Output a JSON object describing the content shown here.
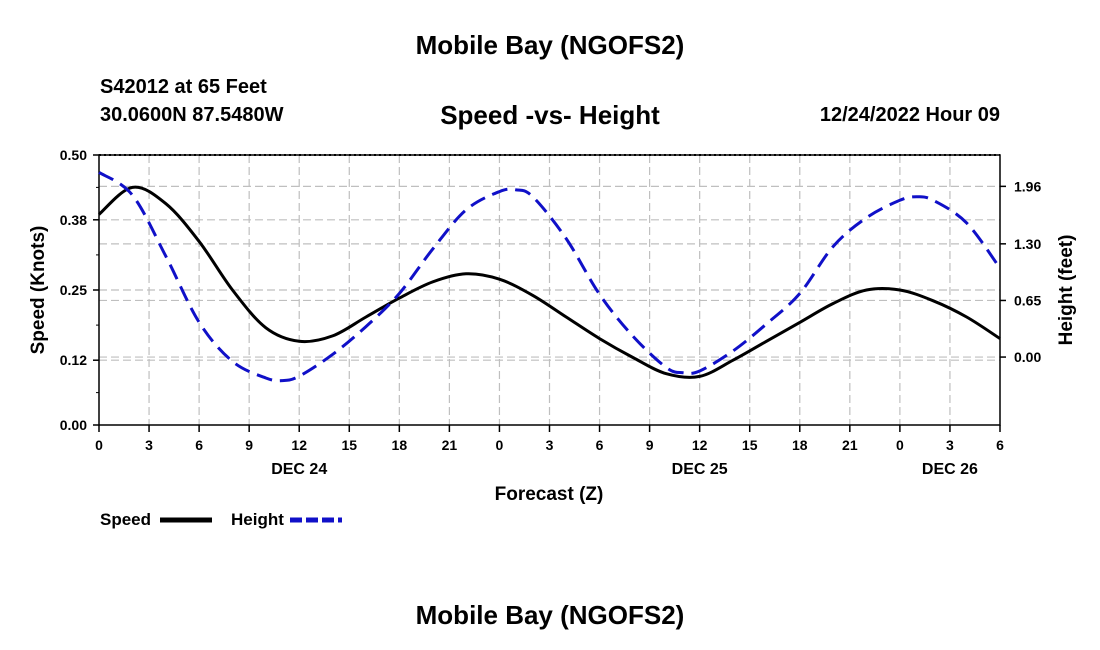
{
  "header": {
    "title": "Mobile Bay (NGOFS2)",
    "station": "S42012 at 65 Feet",
    "coords": "30.0600N  87.5480W",
    "chart_title": "Speed -vs- Height",
    "timestamp": "12/24/2022 Hour 09"
  },
  "footer": {
    "title": "Mobile Bay (NGOFS2)"
  },
  "colors": {
    "speed": "#000000",
    "height": "#1010c8",
    "grid": "#bfbfbf"
  },
  "chart_data": {
    "type": "line",
    "title": "Speed -vs- Height",
    "xlabel": "Forecast (Z)",
    "ylabel": "Speed (Knots)",
    "y2label": "Height (feet)",
    "xlim": [
      0,
      54
    ],
    "ylim": [
      0,
      0.5
    ],
    "y2lim": [
      -0.78,
      2.32
    ],
    "x_ticks": [
      0,
      3,
      6,
      9,
      12,
      15,
      18,
      21,
      24,
      27,
      30,
      33,
      36,
      39,
      42,
      45,
      48,
      51,
      54
    ],
    "x_tick_labels": [
      "0",
      "3",
      "6",
      "9",
      "12",
      "15",
      "18",
      "21",
      "0",
      "3",
      "6",
      "9",
      "12",
      "15",
      "18",
      "21",
      "0",
      "3",
      "6"
    ],
    "date_labels": [
      {
        "x": 12,
        "label": "DEC 24"
      },
      {
        "x": 36,
        "label": "DEC 25"
      },
      {
        "x": 51,
        "label": "DEC 26"
      }
    ],
    "y_ticks": [
      0.0,
      0.12,
      0.25,
      0.38,
      0.5
    ],
    "y_tick_labels": [
      "0.00",
      "0.12",
      "0.25",
      "0.38",
      "0.50"
    ],
    "y2_ticks": [
      0.0,
      0.65,
      1.3,
      1.96
    ],
    "y2_tick_labels": [
      "0.00",
      "0.65",
      "1.30",
      "1.96"
    ],
    "grid": true,
    "legend": "bottom-left",
    "series": [
      {
        "name": "Speed",
        "axis": "left",
        "style": "solid",
        "x": [
          0,
          2,
          4,
          6,
          8,
          10,
          12,
          14,
          16,
          18,
          20,
          22,
          24,
          26,
          28,
          30,
          32,
          34,
          36,
          38,
          40,
          42,
          44,
          46,
          48,
          50,
          52,
          54
        ],
        "values": [
          0.39,
          0.44,
          0.41,
          0.34,
          0.25,
          0.18,
          0.155,
          0.165,
          0.2,
          0.235,
          0.265,
          0.28,
          0.27,
          0.24,
          0.2,
          0.16,
          0.125,
          0.095,
          0.09,
          0.12,
          0.155,
          0.19,
          0.225,
          0.25,
          0.25,
          0.23,
          0.2,
          0.16
        ]
      },
      {
        "name": "Height",
        "axis": "right",
        "style": "dashed",
        "x": [
          0,
          2,
          4,
          6,
          8,
          10,
          11,
          12,
          14,
          16,
          18,
          20,
          22,
          24,
          25,
          26,
          28,
          30,
          32,
          34,
          35,
          36,
          38,
          40,
          42,
          44,
          46,
          48,
          49,
          50,
          52,
          54
        ],
        "values": [
          2.12,
          1.86,
          1.16,
          0.4,
          -0.05,
          -0.24,
          -0.27,
          -0.22,
          0.03,
          0.35,
          0.73,
          1.24,
          1.69,
          1.9,
          1.92,
          1.84,
          1.36,
          0.72,
          0.24,
          -0.12,
          -0.18,
          -0.16,
          0.07,
          0.38,
          0.73,
          1.27,
          1.6,
          1.8,
          1.84,
          1.8,
          1.54,
          1.02
        ]
      }
    ]
  }
}
